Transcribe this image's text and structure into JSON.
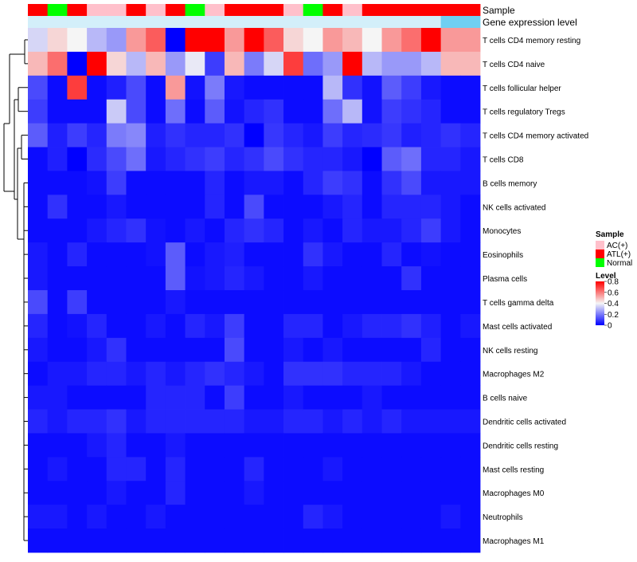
{
  "chart_data": {
    "type": "heatmap",
    "annotation_tracks": [
      "Sample",
      "Gene expression level"
    ],
    "rows": [
      "T cells CD4 memory resting",
      "T cells CD4 naive",
      "T cells follicular helper",
      "T cells regulatory  Tregs",
      "T cells CD4 memory activated",
      "T cells CD8",
      "B cells memory",
      "NK cells activated",
      "Monocytes",
      "Eosinophils",
      "Plasma cells",
      "T cells gamma delta",
      "Mast cells activated",
      "NK cells resting",
      "Macrophages M2",
      "B cells naive",
      "Dendritic cells activated",
      "Dendritic cells resting",
      "Mast cells resting",
      "Macrophages M0",
      "Neutrophils",
      "Macrophages M1"
    ],
    "sample_groups": [
      "ATL(+)",
      "Normal",
      "ATL(+)",
      "AC(+)",
      "AC(+)",
      "ATL(+)",
      "AC(+)",
      "ATL(+)",
      "Normal",
      "AC(+)",
      "ATL(+)",
      "ATL(+)",
      "ATL(+)",
      "AC(+)",
      "Normal",
      "ATL(+)",
      "AC(+)",
      "ATL(+)",
      "ATL(+)",
      "ATL(+)",
      "ATL(+)",
      "ATL(+)",
      "ATL(+)"
    ],
    "expression_level": [
      0.15,
      0.15,
      0.15,
      0.15,
      0.15,
      0.15,
      0.15,
      0.15,
      0.15,
      0.15,
      0.15,
      0.15,
      0.15,
      0.15,
      0.15,
      0.15,
      0.15,
      0.15,
      0.15,
      0.15,
      0.15,
      0.85,
      0.85
    ],
    "values": [
      [
        0.35,
        0.45,
        0.4,
        0.3,
        0.25,
        0.55,
        0.65,
        0.0,
        0.8,
        0.8,
        0.55,
        0.8,
        0.65,
        0.45,
        0.4,
        0.55,
        0.5,
        0.4,
        0.55,
        0.62,
        0.8,
        0.55,
        0.55
      ],
      [
        0.5,
        0.62,
        0.0,
        0.8,
        0.45,
        0.3,
        0.5,
        0.25,
        0.38,
        0.1,
        0.5,
        0.2,
        0.35,
        0.7,
        0.18,
        0.25,
        0.8,
        0.3,
        0.25,
        0.25,
        0.3,
        0.5,
        0.5
      ],
      [
        0.12,
        0.02,
        0.7,
        0.02,
        0.05,
        0.12,
        0.02,
        0.55,
        0.03,
        0.2,
        0.04,
        0.02,
        0.02,
        0.02,
        0.02,
        0.3,
        0.08,
        0.03,
        0.15,
        0.1,
        0.04,
        0.02,
        0.02
      ],
      [
        0.1,
        0.02,
        0.02,
        0.02,
        0.33,
        0.12,
        0.02,
        0.18,
        0.02,
        0.15,
        0.03,
        0.06,
        0.08,
        0.02,
        0.02,
        0.18,
        0.3,
        0.03,
        0.1,
        0.08,
        0.06,
        0.02,
        0.02
      ],
      [
        0.15,
        0.05,
        0.1,
        0.06,
        0.2,
        0.22,
        0.05,
        0.08,
        0.06,
        0.06,
        0.08,
        0.0,
        0.09,
        0.06,
        0.04,
        0.1,
        0.06,
        0.07,
        0.09,
        0.05,
        0.06,
        0.08,
        0.06
      ],
      [
        0.02,
        0.05,
        0.0,
        0.07,
        0.12,
        0.18,
        0.04,
        0.06,
        0.08,
        0.1,
        0.06,
        0.08,
        0.12,
        0.08,
        0.06,
        0.06,
        0.04,
        0.0,
        0.15,
        0.18,
        0.06,
        0.06,
        0.04
      ],
      [
        0.02,
        0.02,
        0.02,
        0.03,
        0.1,
        0.02,
        0.02,
        0.02,
        0.02,
        0.06,
        0.02,
        0.04,
        0.04,
        0.02,
        0.06,
        0.1,
        0.08,
        0.02,
        0.08,
        0.12,
        0.04,
        0.04,
        0.04
      ],
      [
        0.02,
        0.08,
        0.02,
        0.02,
        0.04,
        0.02,
        0.02,
        0.02,
        0.02,
        0.06,
        0.02,
        0.12,
        0.02,
        0.02,
        0.02,
        0.04,
        0.06,
        0.02,
        0.06,
        0.06,
        0.06,
        0.04,
        0.02
      ],
      [
        0.02,
        0.02,
        0.02,
        0.04,
        0.06,
        0.08,
        0.03,
        0.02,
        0.04,
        0.02,
        0.06,
        0.08,
        0.06,
        0.02,
        0.04,
        0.02,
        0.06,
        0.04,
        0.04,
        0.06,
        0.1,
        0.04,
        0.02
      ],
      [
        0.04,
        0.02,
        0.06,
        0.02,
        0.02,
        0.02,
        0.03,
        0.15,
        0.02,
        0.04,
        0.05,
        0.02,
        0.02,
        0.02,
        0.08,
        0.04,
        0.02,
        0.02,
        0.06,
        0.02,
        0.03,
        0.02,
        0.02
      ],
      [
        0.04,
        0.02,
        0.02,
        0.02,
        0.02,
        0.02,
        0.02,
        0.15,
        0.03,
        0.04,
        0.06,
        0.04,
        0.02,
        0.02,
        0.04,
        0.02,
        0.02,
        0.02,
        0.02,
        0.08,
        0.02,
        0.02,
        0.02
      ],
      [
        0.12,
        0.02,
        0.1,
        0.02,
        0.02,
        0.02,
        0.02,
        0.04,
        0.02,
        0.02,
        0.02,
        0.02,
        0.02,
        0.02,
        0.02,
        0.02,
        0.02,
        0.02,
        0.02,
        0.02,
        0.02,
        0.02,
        0.02
      ],
      [
        0.06,
        0.02,
        0.03,
        0.06,
        0.02,
        0.02,
        0.04,
        0.02,
        0.06,
        0.04,
        0.1,
        0.02,
        0.02,
        0.06,
        0.06,
        0.02,
        0.04,
        0.06,
        0.06,
        0.08,
        0.05,
        0.02,
        0.04
      ],
      [
        0.04,
        0.02,
        0.02,
        0.04,
        0.08,
        0.02,
        0.02,
        0.02,
        0.02,
        0.02,
        0.12,
        0.02,
        0.02,
        0.04,
        0.02,
        0.04,
        0.02,
        0.02,
        0.02,
        0.02,
        0.06,
        0.02,
        0.02
      ],
      [
        0.02,
        0.04,
        0.04,
        0.06,
        0.06,
        0.04,
        0.06,
        0.04,
        0.06,
        0.08,
        0.06,
        0.04,
        0.02,
        0.08,
        0.08,
        0.08,
        0.06,
        0.06,
        0.06,
        0.04,
        0.02,
        0.02,
        0.02
      ],
      [
        0.04,
        0.04,
        0.02,
        0.02,
        0.02,
        0.02,
        0.06,
        0.06,
        0.06,
        0.02,
        0.1,
        0.02,
        0.02,
        0.04,
        0.02,
        0.02,
        0.02,
        0.04,
        0.02,
        0.02,
        0.02,
        0.02,
        0.02
      ],
      [
        0.06,
        0.04,
        0.06,
        0.06,
        0.08,
        0.04,
        0.06,
        0.06,
        0.06,
        0.06,
        0.06,
        0.04,
        0.04,
        0.06,
        0.06,
        0.04,
        0.06,
        0.04,
        0.06,
        0.04,
        0.04,
        0.04,
        0.04
      ],
      [
        0.02,
        0.02,
        0.02,
        0.04,
        0.06,
        0.02,
        0.02,
        0.04,
        0.02,
        0.02,
        0.02,
        0.02,
        0.02,
        0.02,
        0.02,
        0.02,
        0.02,
        0.02,
        0.02,
        0.02,
        0.02,
        0.02,
        0.02
      ],
      [
        0.02,
        0.04,
        0.02,
        0.02,
        0.06,
        0.06,
        0.02,
        0.06,
        0.02,
        0.02,
        0.02,
        0.06,
        0.02,
        0.02,
        0.02,
        0.04,
        0.02,
        0.02,
        0.02,
        0.02,
        0.02,
        0.02,
        0.02
      ],
      [
        0.02,
        0.02,
        0.02,
        0.02,
        0.04,
        0.02,
        0.02,
        0.06,
        0.02,
        0.02,
        0.02,
        0.04,
        0.02,
        0.02,
        0.02,
        0.02,
        0.02,
        0.02,
        0.02,
        0.02,
        0.02,
        0.02,
        0.02
      ],
      [
        0.04,
        0.04,
        0.02,
        0.04,
        0.02,
        0.02,
        0.04,
        0.02,
        0.02,
        0.02,
        0.02,
        0.02,
        0.02,
        0.02,
        0.06,
        0.04,
        0.02,
        0.02,
        0.02,
        0.02,
        0.02,
        0.04,
        0.02
      ],
      [
        0.02,
        0.02,
        0.02,
        0.02,
        0.02,
        0.02,
        0.02,
        0.02,
        0.02,
        0.02,
        0.02,
        0.02,
        0.02,
        0.02,
        0.02,
        0.02,
        0.02,
        0.02,
        0.02,
        0.02,
        0.02,
        0.02,
        0.02
      ]
    ],
    "color_scale": {
      "range": [
        0,
        0.8
      ],
      "stops": [
        {
          "value": 0,
          "color": "#0000ff"
        },
        {
          "value": 0.4,
          "color": "#f5f5f5"
        },
        {
          "value": 0.8,
          "color": "#ff0000"
        }
      ]
    },
    "legend": {
      "sample_title": "Sample",
      "sample_entries": [
        {
          "label": "AC(+)",
          "color": "#ffc0cb"
        },
        {
          "label": "ATL(+)",
          "color": "#ff0000"
        },
        {
          "label": "Normal",
          "color": "#00ff00"
        }
      ],
      "level_title": "Level",
      "level_ticks": [
        "0.8",
        "0.6",
        "0.4",
        "0.2",
        "0"
      ],
      "level_tick_values": [
        0.8,
        0.6,
        0.4,
        0.2,
        0
      ],
      "placement": "right"
    },
    "expression_colors": {
      "low": "#e8f6fc",
      "high": "#5bc8f0"
    },
    "dendrogram": "rows"
  }
}
